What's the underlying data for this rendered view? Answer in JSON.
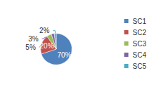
{
  "chart_data": {
    "type": "pie",
    "categories": [
      "SC1",
      "SC2",
      "SC3",
      "SC4",
      "SC5"
    ],
    "values": [
      70,
      20,
      5,
      3,
      2
    ],
    "value_labels": [
      "70%",
      "20%",
      "5%",
      "3%",
      "2%"
    ],
    "colors": [
      "#4f81bd",
      "#c0504d",
      "#9bbb59",
      "#8064a2",
      "#4bacc6"
    ],
    "data_labels": true,
    "legend": "right"
  }
}
